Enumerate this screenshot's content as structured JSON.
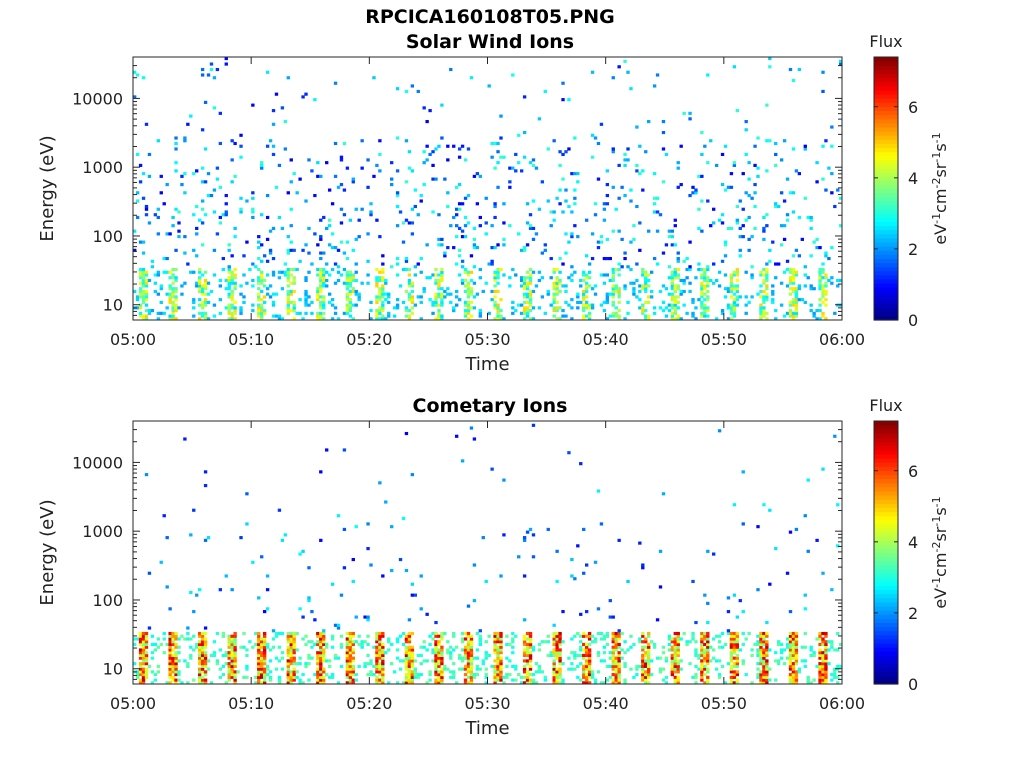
{
  "page": {
    "main_title": "RPCICA160108T05.PNG"
  },
  "chart_data": [
    {
      "type": "heatmap",
      "title": "Solar Wind Ions",
      "xlabel": "Time",
      "ylabel": "Energy (eV)",
      "x_ticks": [
        "05:00",
        "05:10",
        "05:20",
        "05:30",
        "05:40",
        "05:50",
        "06:00"
      ],
      "x_range": [
        "05:00",
        "06:00"
      ],
      "y_scale": "log",
      "y_ticks": [
        10,
        100,
        1000,
        10000
      ],
      "y_range": [
        6,
        40000
      ],
      "colorbar": {
        "label_top": "Flux",
        "label_side": "eV-1cm-2sr-1s-1",
        "ticks": [
          0,
          2,
          4,
          6
        ],
        "range": [
          0,
          7.4
        ],
        "colormap": "jet"
      },
      "low_energy_band": {
        "energy_range_eV": [
          6,
          35
        ],
        "flux_range": [
          2.5,
          5.0
        ]
      },
      "scattered_flux_range": [
        0.8,
        3.2
      ],
      "grid": false
    },
    {
      "type": "heatmap",
      "title": "Cometary Ions",
      "xlabel": "Time",
      "ylabel": "Energy (eV)",
      "x_ticks": [
        "05:00",
        "05:10",
        "05:20",
        "05:30",
        "05:40",
        "05:50",
        "06:00"
      ],
      "x_range": [
        "05:00",
        "06:00"
      ],
      "y_scale": "log",
      "y_ticks": [
        10,
        100,
        1000,
        10000
      ],
      "y_range": [
        6,
        40000
      ],
      "colorbar": {
        "label_top": "Flux",
        "label_side": "eV-1cm-2sr-1s-1",
        "ticks": [
          0,
          2,
          4,
          6
        ],
        "range": [
          0,
          7.4
        ],
        "colormap": "jet"
      },
      "low_energy_band": {
        "energy_range_eV": [
          6,
          35
        ],
        "flux_range": [
          3.5,
          7.0
        ]
      },
      "scattered_flux_range": [
        0.8,
        2.8
      ],
      "grid": false
    }
  ]
}
